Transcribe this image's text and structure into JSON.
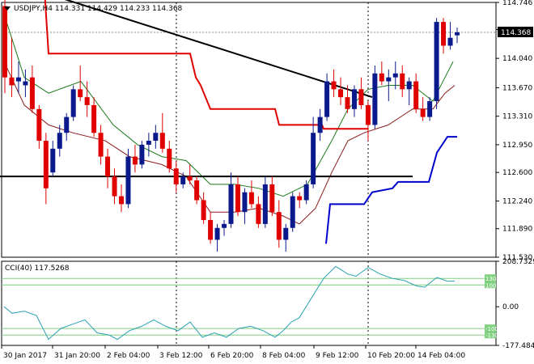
{
  "chart_data": {
    "type": "candlestick",
    "symbol": "USDJPY,H4",
    "ohlc": [
      "114.331",
      "114.429",
      "114.233",
      "114.368"
    ],
    "current_price_label": "114.368",
    "price_ylim": [
      111.53,
      114.746
    ],
    "price_ticks": [
      "114.746",
      "114.403",
      "114.040",
      "113.670",
      "113.310",
      "112.950",
      "112.600",
      "112.240",
      "111.890",
      "111.530"
    ],
    "x_tick_labels": [
      "30 Jan 2017",
      "31 Jan 20:00",
      "2 Feb 04:00",
      "3 Feb 12:00",
      "6 Feb 20:00",
      "8 Feb 04:00",
      "9 Feb 12:00",
      "10 Feb 20:00",
      "14 Feb 04:00"
    ],
    "candles": [
      [
        114.7,
        114.9,
        113.6,
        113.8
      ],
      [
        113.8,
        114.3,
        113.55,
        113.7
      ],
      [
        113.75,
        114.0,
        113.6,
        113.8
      ],
      [
        113.7,
        113.9,
        113.55,
        113.75
      ],
      [
        113.8,
        113.95,
        113.35,
        113.4
      ],
      [
        113.4,
        113.45,
        112.9,
        113.0
      ],
      [
        113.0,
        113.1,
        112.2,
        112.4
      ],
      [
        112.6,
        113.0,
        112.55,
        112.9
      ],
      [
        112.9,
        113.2,
        112.8,
        113.1
      ],
      [
        113.1,
        113.35,
        113.0,
        113.3
      ],
      [
        113.3,
        113.7,
        113.25,
        113.65
      ],
      [
        113.65,
        113.95,
        113.5,
        113.55
      ],
      [
        113.55,
        113.75,
        113.3,
        113.45
      ],
      [
        113.45,
        113.55,
        113.05,
        113.1
      ],
      [
        113.1,
        113.2,
        112.7,
        112.8
      ],
      [
        112.8,
        112.9,
        112.4,
        112.55
      ],
      [
        112.55,
        112.65,
        112.2,
        112.3
      ],
      [
        112.3,
        112.45,
        112.1,
        112.2
      ],
      [
        112.2,
        112.9,
        112.15,
        112.8
      ],
      [
        112.8,
        112.95,
        112.6,
        112.7
      ],
      [
        112.7,
        113.0,
        112.65,
        112.95
      ],
      [
        112.95,
        113.1,
        112.8,
        113.0
      ],
      [
        113.0,
        113.2,
        112.9,
        113.1
      ],
      [
        113.1,
        113.35,
        112.85,
        112.9
      ],
      [
        112.9,
        113.0,
        112.6,
        112.65
      ],
      [
        112.65,
        112.75,
        112.35,
        112.45
      ],
      [
        112.45,
        112.6,
        112.4,
        112.55
      ],
      [
        112.55,
        112.7,
        112.45,
        112.5
      ],
      [
        112.5,
        112.55,
        112.2,
        112.25
      ],
      [
        112.25,
        112.35,
        111.95,
        112.0
      ],
      [
        112.0,
        112.1,
        111.7,
        111.75
      ],
      [
        111.75,
        111.95,
        111.6,
        111.9
      ],
      [
        111.9,
        112.0,
        111.8,
        111.95
      ],
      [
        111.95,
        112.6,
        111.9,
        112.45
      ],
      [
        112.45,
        112.55,
        112.05,
        112.1
      ],
      [
        112.1,
        112.4,
        111.95,
        112.35
      ],
      [
        112.35,
        112.5,
        112.15,
        112.2
      ],
      [
        112.2,
        112.3,
        111.9,
        111.95
      ],
      [
        111.95,
        112.55,
        111.9,
        112.45
      ],
      [
        112.45,
        112.55,
        112.05,
        112.1
      ],
      [
        112.1,
        112.25,
        111.65,
        111.75
      ],
      [
        111.75,
        111.95,
        111.6,
        111.9
      ],
      [
        111.9,
        112.35,
        111.85,
        112.3
      ],
      [
        112.3,
        112.35,
        112.15,
        112.25
      ],
      [
        112.25,
        112.5,
        112.2,
        112.45
      ],
      [
        112.45,
        113.3,
        112.4,
        113.1
      ],
      [
        113.1,
        113.4,
        113.0,
        113.3
      ],
      [
        113.3,
        113.85,
        113.25,
        113.75
      ],
      [
        113.75,
        113.9,
        113.55,
        113.65
      ],
      [
        113.65,
        113.8,
        113.45,
        113.55
      ],
      [
        113.55,
        113.7,
        113.35,
        113.4
      ],
      [
        113.4,
        113.7,
        113.3,
        113.65
      ],
      [
        113.65,
        113.8,
        113.4,
        113.45
      ],
      [
        113.45,
        113.5,
        113.0,
        113.2
      ],
      [
        113.2,
        113.95,
        113.15,
        113.85
      ],
      [
        113.85,
        114.0,
        113.7,
        113.75
      ],
      [
        113.75,
        113.9,
        113.5,
        113.8
      ],
      [
        113.8,
        114.0,
        113.65,
        113.85
      ],
      [
        113.85,
        113.95,
        113.55,
        113.65
      ],
      [
        113.65,
        113.8,
        113.45,
        113.75
      ],
      [
        113.75,
        113.85,
        113.35,
        113.4
      ],
      [
        113.4,
        113.55,
        113.25,
        113.3
      ],
      [
        113.3,
        113.55,
        113.25,
        113.5
      ],
      [
        113.5,
        114.55,
        113.4,
        114.5
      ],
      [
        114.5,
        114.55,
        114.1,
        114.2
      ],
      [
        114.2,
        114.5,
        114.15,
        114.3
      ],
      [
        114.331,
        114.429,
        114.233,
        114.368
      ]
    ],
    "trendline_desc": [
      [
        45,
        114.9
      ],
      [
        460,
        113.55
      ]
    ],
    "support_line": [
      [
        0,
        112.55
      ],
      [
        510,
        112.55
      ]
    ],
    "red_stop_line": [
      [
        55,
        114.9
      ],
      [
        60,
        114.1
      ],
      [
        235,
        114.1
      ],
      [
        242,
        113.8
      ],
      [
        248,
        113.7
      ],
      [
        260,
        113.4
      ],
      [
        340,
        113.4
      ],
      [
        345,
        113.2
      ],
      [
        398,
        113.2
      ],
      [
        400,
        113.15
      ],
      [
        455,
        113.15
      ]
    ],
    "blue_stop_line": [
      [
        403,
        111.7
      ],
      [
        408,
        112.2
      ],
      [
        450,
        112.2
      ],
      [
        460,
        112.35
      ],
      [
        485,
        112.4
      ],
      [
        492,
        112.48
      ],
      [
        530,
        112.48
      ],
      [
        540,
        112.85
      ],
      [
        553,
        113.05
      ],
      [
        565,
        113.05
      ]
    ],
    "green_ma": [
      [
        5,
        114.6
      ],
      [
        30,
        113.8
      ],
      [
        60,
        113.6
      ],
      [
        100,
        113.75
      ],
      [
        140,
        113.2
      ],
      [
        170,
        112.95
      ],
      [
        200,
        112.8
      ],
      [
        230,
        112.75
      ],
      [
        260,
        112.45
      ],
      [
        290,
        112.45
      ],
      [
        320,
        112.4
      ],
      [
        350,
        112.3
      ],
      [
        380,
        112.45
      ],
      [
        410,
        113.0
      ],
      [
        430,
        113.4
      ],
      [
        455,
        113.65
      ],
      [
        480,
        113.7
      ],
      [
        510,
        113.7
      ],
      [
        535,
        113.5
      ],
      [
        550,
        113.8
      ],
      [
        560,
        114.0
      ]
    ],
    "darkred_ma": [
      [
        5,
        114.0
      ],
      [
        30,
        113.45
      ],
      [
        60,
        113.2
      ],
      [
        90,
        113.1
      ],
      [
        130,
        113.0
      ],
      [
        160,
        112.8
      ],
      [
        200,
        112.7
      ],
      [
        230,
        112.55
      ],
      [
        260,
        112.1
      ],
      [
        290,
        112.1
      ],
      [
        320,
        112.15
      ],
      [
        350,
        112.05
      ],
      [
        370,
        111.95
      ],
      [
        390,
        112.15
      ],
      [
        410,
        112.6
      ],
      [
        430,
        113.0
      ],
      [
        450,
        113.1
      ],
      [
        480,
        113.2
      ],
      [
        510,
        113.4
      ],
      [
        535,
        113.4
      ],
      [
        550,
        113.6
      ],
      [
        562,
        113.7
      ]
    ],
    "cci": {
      "label": "CCI(40)",
      "value": "117.5268",
      "ylim": [
        -177.4847,
        208.7329
      ],
      "ticks": [
        "208.7329",
        "0.00",
        "-177.4847"
      ],
      "levels": [
        130,
        100,
        -100,
        -130
      ],
      "level_labels": [
        "130",
        "100",
        "-100",
        "-130"
      ],
      "values": [
        [
          5,
          0
        ],
        [
          15,
          -30
        ],
        [
          30,
          -20
        ],
        [
          45,
          -40
        ],
        [
          60,
          -150
        ],
        [
          75,
          -100
        ],
        [
          90,
          -80
        ],
        [
          105,
          -60
        ],
        [
          120,
          -120
        ],
        [
          135,
          -130
        ],
        [
          145,
          -150
        ],
        [
          160,
          -110
        ],
        [
          175,
          -90
        ],
        [
          190,
          -60
        ],
        [
          205,
          -90
        ],
        [
          220,
          -110
        ],
        [
          235,
          -70
        ],
        [
          250,
          -140
        ],
        [
          265,
          -120
        ],
        [
          280,
          -140
        ],
        [
          295,
          -100
        ],
        [
          310,
          -90
        ],
        [
          325,
          -110
        ],
        [
          340,
          -140
        ],
        [
          350,
          -110
        ],
        [
          360,
          -70
        ],
        [
          370,
          -50
        ],
        [
          385,
          40
        ],
        [
          400,
          130
        ],
        [
          415,
          185
        ],
        [
          430,
          150
        ],
        [
          440,
          140
        ],
        [
          455,
          180
        ],
        [
          470,
          150
        ],
        [
          485,
          130
        ],
        [
          500,
          120
        ],
        [
          515,
          95
        ],
        [
          525,
          90
        ],
        [
          540,
          135
        ],
        [
          552,
          118
        ],
        [
          562,
          117.5
        ]
      ]
    }
  }
}
